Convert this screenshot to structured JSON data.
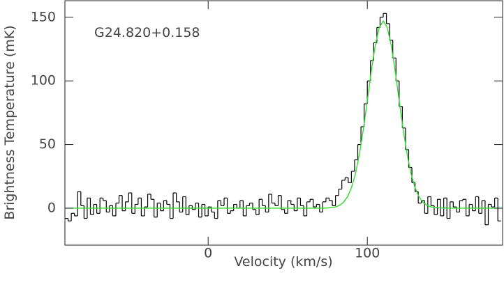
{
  "chart_data": {
    "type": "line",
    "annotation": "G24.820+0.158",
    "xlabel": "Velocity (km/s)",
    "ylabel": "Brightness Temperature (mK)",
    "xlim": [
      -90,
      185
    ],
    "ylim": [
      -29,
      163
    ],
    "xticks": [
      0,
      100
    ],
    "yticks": [
      0,
      50,
      100,
      150
    ],
    "grid": false,
    "series": [
      {
        "style": "step",
        "color": "#000000",
        "x": [
          -89,
          -87,
          -85,
          -83,
          -81,
          -79,
          -77,
          -75,
          -73,
          -71,
          -69,
          -67,
          -65,
          -63,
          -61,
          -59,
          -57,
          -55,
          -53,
          -51,
          -49,
          -47,
          -45,
          -43,
          -41,
          -39,
          -37,
          -35,
          -33,
          -31,
          -29,
          -27,
          -25,
          -23,
          -21,
          -19,
          -17,
          -15,
          -13,
          -11,
          -9,
          -7,
          -5,
          -3,
          -1,
          1,
          3,
          5,
          7,
          9,
          11,
          13,
          15,
          17,
          19,
          21,
          23,
          25,
          27,
          29,
          31,
          33,
          35,
          37,
          39,
          41,
          43,
          45,
          47,
          49,
          51,
          53,
          55,
          57,
          59,
          61,
          63,
          65,
          67,
          69,
          71,
          73,
          75,
          77,
          79,
          81,
          83,
          85,
          87,
          89,
          91,
          93,
          95,
          97,
          99,
          101,
          103,
          105,
          107,
          109,
          111,
          113,
          115,
          117,
          119,
          121,
          123,
          125,
          127,
          129,
          131,
          133,
          135,
          137,
          139,
          141,
          143,
          145,
          147,
          149,
          151,
          153,
          155,
          157,
          159,
          161,
          163,
          165,
          167,
          169,
          171,
          173,
          175,
          177,
          179,
          181,
          183
        ],
        "values": [
          -8,
          -10,
          -4,
          -6,
          13,
          2,
          -8,
          8,
          -5,
          3,
          -4,
          8,
          6,
          -3,
          2,
          -6,
          4,
          10,
          -2,
          5,
          12,
          -4,
          3,
          8,
          -6,
          1,
          11,
          7,
          -7,
          4,
          -2,
          6,
          3,
          -8,
          12,
          5,
          -3,
          9,
          -5,
          2,
          -1,
          4,
          -7,
          3,
          -6,
          1,
          -3,
          -8,
          6,
          2,
          8,
          -4,
          -2,
          3,
          0,
          6,
          -6,
          2,
          4,
          -1,
          -5,
          7,
          2,
          -3,
          11,
          4,
          2,
          10,
          -1,
          -4,
          6,
          3,
          -2,
          8,
          2,
          -6,
          5,
          7,
          1,
          3,
          -3,
          5,
          8,
          6,
          2,
          10,
          15,
          22,
          24,
          20,
          29,
          38,
          50,
          64,
          82,
          100,
          116,
          130,
          142,
          150,
          153,
          145,
          132,
          118,
          100,
          80,
          63,
          46,
          32,
          20,
          13,
          4,
          6,
          -4,
          9,
          2,
          -5,
          7,
          -6,
          8,
          -8,
          5,
          1,
          -3,
          6,
          7,
          -6,
          3,
          -2,
          9,
          -4,
          6,
          -13,
          3,
          1,
          8,
          -10
        ]
      },
      {
        "style": "line",
        "color": "#33dd33",
        "x": [
          -90,
          70,
          75,
          80,
          82.5,
          85,
          87.5,
          90,
          92.5,
          95,
          97.5,
          100,
          102.5,
          105,
          107.5,
          110,
          112.5,
          115,
          117.5,
          120,
          122.5,
          125,
          127.5,
          130,
          132.5,
          135,
          137.5,
          140,
          145,
          150,
          185
        ],
        "values": [
          0,
          0,
          0.2,
          1.0,
          2.2,
          4.6,
          8.9,
          16.0,
          26.9,
          42.3,
          61.9,
          84.5,
          107.6,
          128.0,
          142.0,
          147,
          142.0,
          128.0,
          107.6,
          84.5,
          61.9,
          42.3,
          26.9,
          16.0,
          8.9,
          4.6,
          2.2,
          1.0,
          0.2,
          0,
          0
        ]
      }
    ]
  }
}
